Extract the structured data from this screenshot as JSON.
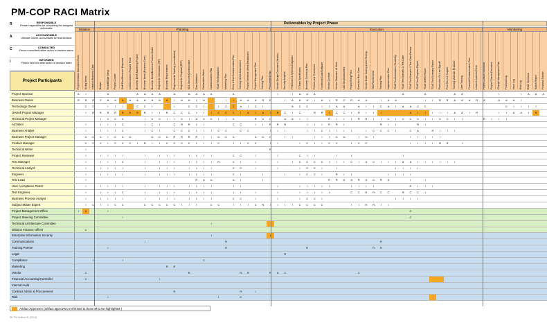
{
  "title": "PM-COP RACI  Matrix",
  "legend": [
    {
      "key": "R",
      "name": "RESPONSIBLE",
      "desc": "Person responsible for completing the assigned deliverable"
    },
    {
      "key": "A",
      "name": "ACCOUNTABLE",
      "desc": "Ultimate Owner, Accountable for final decision"
    },
    {
      "key": "C",
      "name": "CONSULTED",
      "desc": "Person consulted before action or decision taken"
    },
    {
      "key": "I",
      "name": "INFORMED",
      "desc": "Person informed after action or decision taken"
    }
  ],
  "participants_header": "Project Participants",
  "deliverables_header": "Deliverables by Project Phase",
  "phases": [
    "Initiation",
    "Planning",
    "Execution",
    "Monitoring"
  ],
  "colors": {
    "yellow_rows": "#fdfbd0",
    "green_rows": "#d8eec4",
    "blue_rows": "#c8dcf0",
    "highlight": "#f5a623",
    "header": "#f9cfa5"
  },
  "columns": [
    "Project Initiation Document Form",
    "Sizing Memo",
    "Initiation Business Case",
    "Budget",
    "Kickoff/Gate Setup",
    "Project Charter",
    "Staff Plan/Resource Requests",
    "Communication Request Form",
    "Business Brief (Marketing Project)",
    "Business Need (Business Case)",
    "Business Need/Business Process Model",
    "Request for Information (RFI)",
    "Business Requirements",
    "Requirements Catalog (consolidated)",
    "Request for Proposal (RFP)",
    "SDC Security Questionnaire",
    "Data Validation",
    "Deliverables Matrix",
    "Communication Plan",
    "TCoE Test Estimation",
    "Marketing Plan",
    "Entry & Exit Communication Plan",
    "Training Needs Assessment",
    "Project Schedule (Work Breakdown)",
    "Project Management Plan",
    "Training Plan",
    "Procurement Plan",
    "Vendor Design Document (Vendor)",
    "Security Analysis",
    "IT Network & Systems Diagrams",
    "IT Team Specification",
    "Business Continuity Plan",
    "Policies and Procedures",
    "Functional Code/Software",
    "Vendor Contract",
    "Vendor Statement of Work",
    "UAT Site Assessment",
    "Project Entry Point",
    "Execution Bus. Case",
    "Vendor Build / Coding & Unit Testing",
    "Test Plan/Scheme",
    "Training Plan",
    "Implementation Plan",
    "TCoE Test Automation Feasibility",
    "TCoE Test Scenario & Test Case",
    "TCoE Test Scenario & Test Case Review",
    "TCoE Test Progress Report",
    "TCoE Defect Report",
    "TCoE Test Summary Report",
    "Production Go-Live Signoff",
    "Post Go-Live Support",
    "Training Materials Finalized",
    "User Training",
    "Financial Communication Plan",
    "Lessons Learned Form",
    "Project Closure Workbook",
    "Project Closure Document",
    "Change Management Plan",
    "Financial Log",
    "Issue Log",
    "Risk Log",
    "RACI Workbook",
    "Status Report",
    "Financial Tracker"
  ],
  "rows": [
    {
      "name": "Project Sponsor",
      "cat": "yellow",
      "v": "AI  A   AAAA A AAAA  A     I IAAA           A  A   AA    I  IAAAI"
    },
    {
      "name": "Business Owner",
      "cat": "yellow",
      "v": "RRRCAAAAAAAAAIAAIA  IIAAARR IAAAIAIRCRAA IAA   IIRRAAARA AAAI"
    },
    {
      "name": "Technology Owner",
      "cat": "yellow",
      "v": " CC III CCI  I CCI ICCAICI   ACC IIAA AIICAIAACC          CIIII AAACAI"
    },
    {
      "name": "Overall Project Manager",
      "cat": "yellow",
      "v": " IRRRRRRRRIIRCCCIIICCCIAIAIRCIC RRICCIRIII   AIIIIIAAIR  IIAAIR"
    },
    {
      "name": "Technical Project Manager",
      "cat": "yellow",
      "v": "   ICCC  ICCIICIACCIIC  RCC AAII  RIIIRRIICICCCIICCII  RIII"
    },
    {
      "name": "Architect",
      "cat": "yellow",
      "v": " I IIIC  ICI CRRII   CC IIRRR  IIIRRI    RII  RI"
    },
    {
      "name": "Business Analyst",
      "cat": "yellow",
      "v": " I IIIC  ICI CCCIIICC CC  III  IICIIII ICCCI CA RIII"
    },
    {
      "name": "Business Project Manager",
      "cat": "yellow",
      "v": " CCCICCC  CCCRRRRIICCC  CCC II  IIICC ICI    IIIII"
    },
    {
      "name": "Product Manager",
      "cat": "yellow",
      "v": " CCCICCCIRIICCCCIIIC IICC II  ICIICC ICC     IIIIRR I"
    },
    {
      "name": "Technical Writer",
      "cat": "yellow",
      "v": " I                        R"
    },
    {
      "name": "Project Reviewer",
      "cat": "yellow",
      "v": " I IIII  I III IIII  CC I  I  CII  I I      I"
    },
    {
      "name": "Test Manager",
      "cat": "yellow",
      "v": " I IIIC  I III IIIIR CI I  I ICCCCIIICIACIIIAAIIIIII"
    },
    {
      "name": "Technical Analyst",
      "cat": "yellow",
      "v": " I IIII  I III IIII  CC I  I  ICCI I       IIII"
    },
    {
      "name": "Engineer",
      "cat": "yellow",
      "v": " I IIII  I III IIII  CI  I  I ICCI RII    IIII"
    },
    {
      "name": "Test Lead",
      "cat": "yellow",
      "v": " I              RAC  CI  I        RRAARACRA  I I"
    },
    {
      "name": "User Acceptance Tester",
      "cat": "yellow",
      "v": " I IIII  I III IIII  II    I  IIIII  IIII    RIII"
    },
    {
      "name": "Test Engineer",
      "cat": "yellow",
      "v": " I IIIC  I III IIII  II I  I  IIIII  CCRRCC RCCI"
    },
    {
      "name": "Business Process Analyst",
      "cat": "yellow",
      "v": " I IIII  I III IIII  CC I  I  ICCI         IIII"
    },
    {
      "name": "Subject Matter Expert",
      "cat": "yellow",
      "v": " ICIICC  CCCCCIII CC IIICRIIIICCCC   IIRRII"
    },
    {
      "name": "Project Management Office",
      "cat": "green",
      "v": "IA  I                                        C"
    },
    {
      "name": "Project Steering Committee",
      "cat": "green",
      "v": "      I                                      C"
    },
    {
      "name": "Technical Architecture Committee",
      "cat": "green",
      "v": "                  I"
    },
    {
      "name": "Division Finance Officer",
      "cat": "green",
      "v": " C"
    },
    {
      "name": "Enterprise Information Security",
      "cat": "blue",
      "v": "                  I       I"
    },
    {
      "name": "Communications",
      "cat": "blue",
      "v": "         I          R                    R"
    },
    {
      "name": "Training Partner",
      "cat": "blue",
      "v": "    I               R          R        RR"
    },
    {
      "name": "Legal",
      "cat": "blue",
      "v": "                            R"
    },
    {
      "name": "Compliance",
      "cat": "blue",
      "v": "  I   I          C"
    },
    {
      "name": "Marketing",
      "cat": "blue",
      "v": "            RR"
    },
    {
      "name": "Vendor",
      "cat": "blue",
      "v": " C             R      RR  RAC         C"
    },
    {
      "name": "Financial Accounting/Controller",
      "cat": "blue",
      "v": " C         I"
    },
    {
      "name": "Internal Audit",
      "cat": "blue",
      "v": ""
    },
    {
      "name": "Contract Admin & Procurement",
      "cat": "blue",
      "v": "             R        R I"
    },
    {
      "name": "Risk",
      "cat": "blue",
      "v": "    I              I  C"
    }
  ],
  "highlights": [
    [
      1,
      6
    ],
    [
      1,
      12
    ],
    [
      1,
      18
    ],
    [
      1,
      21
    ],
    [
      2,
      7
    ],
    [
      2,
      12
    ],
    [
      2,
      18
    ],
    [
      2,
      21
    ],
    [
      3,
      6
    ],
    [
      3,
      7
    ],
    [
      3,
      8
    ],
    [
      3,
      18
    ],
    [
      3,
      19
    ],
    [
      3,
      20
    ],
    [
      3,
      21
    ],
    [
      3,
      22
    ],
    [
      3,
      23
    ],
    [
      3,
      24
    ],
    [
      3,
      25
    ],
    [
      3,
      26
    ],
    [
      3,
      27
    ],
    [
      3,
      34
    ],
    [
      3,
      41
    ],
    [
      3,
      42
    ],
    [
      3,
      43
    ],
    [
      3,
      44
    ],
    [
      3,
      45
    ],
    [
      3,
      46
    ],
    [
      3,
      47
    ],
    [
      3,
      62
    ],
    [
      19,
      1
    ],
    [
      21,
      26
    ],
    [
      23,
      26
    ],
    [
      30,
      48
    ],
    [
      30,
      49
    ],
    [
      33,
      48
    ]
  ],
  "footer_note": "Artifact Approvers  (artifact approvers not limited to those who are highlighted )",
  "page_footer": "SE PM Artifact ID (2013)"
}
